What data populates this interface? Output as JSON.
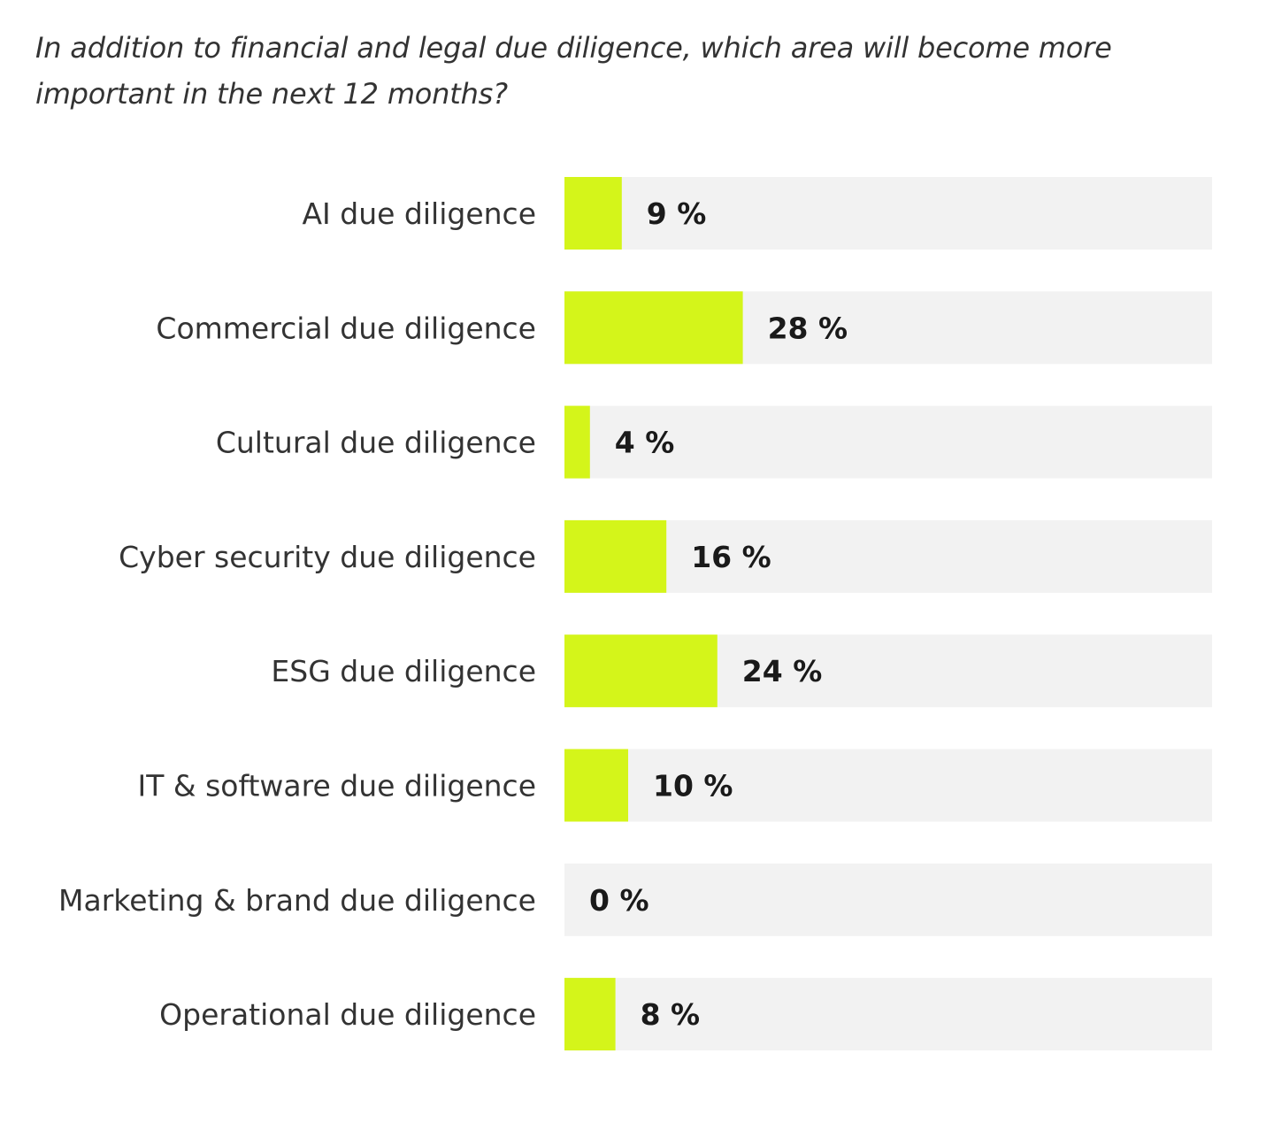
{
  "question": "In addition to financial and legal due diligence, which area will become more important in the next 12 months?",
  "chart_data": {
    "type": "bar",
    "orientation": "horizontal",
    "title": "In addition to financial and legal due diligence, which area will become more important in the next 12 months?",
    "categories": [
      "AI due diligence",
      "Commercial due diligence",
      "Cultural due diligence",
      "Cyber security due diligence",
      "ESG due diligence",
      "IT & software due diligence",
      "Marketing & brand due diligence",
      "Operational due diligence"
    ],
    "values": [
      9,
      28,
      4,
      16,
      24,
      10,
      0,
      8
    ],
    "value_labels": [
      "9 %",
      "28 %",
      "4 %",
      "16 %",
      "24 %",
      "10 %",
      "0 %",
      "8 %"
    ],
    "unit": "%",
    "xlim": [
      0,
      100
    ],
    "xlabel": "",
    "ylabel": "",
    "grid": false,
    "legend": "none",
    "colors": {
      "bar": "#d4f51a",
      "track": "#f2f2f2",
      "label_text": "#333333",
      "value_text": "#1a1a1a"
    }
  }
}
